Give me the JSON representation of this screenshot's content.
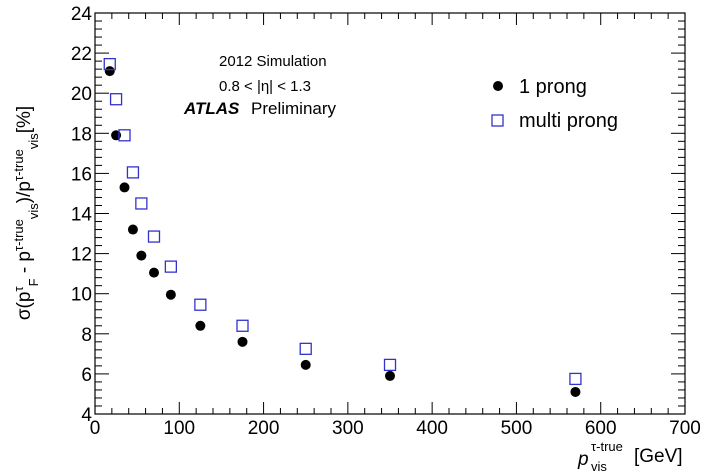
{
  "chart_data": {
    "type": "scatter",
    "xlim": [
      0,
      700
    ],
    "ylim": [
      4,
      24
    ],
    "x_ticks": [
      0,
      100,
      200,
      300,
      400,
      500,
      600,
      700
    ],
    "y_ticks": [
      4,
      6,
      8,
      10,
      12,
      14,
      16,
      18,
      20,
      22,
      24
    ],
    "xlabel": {
      "main": "p",
      "sup": "τ-true",
      "sub": "vis",
      "unit": "[GeV]"
    },
    "ylabel": "σ(p_F^τ - p_vis^τ-true)/p_vis^τ-true [%]",
    "annotations": {
      "simulation": "2012 Simulation",
      "eta_range": "0.8 < |η| < 1.3",
      "atlas": "ATLAS",
      "status": "Preliminary"
    },
    "legend_position": "top-right",
    "series": [
      {
        "name": "1 prong",
        "marker": "filled-circle",
        "color": "#000000",
        "points": [
          [
            17.5,
            21.1
          ],
          [
            25,
            17.9
          ],
          [
            35,
            15.3
          ],
          [
            45,
            13.2
          ],
          [
            55,
            11.9
          ],
          [
            70,
            11.05
          ],
          [
            90,
            9.95
          ],
          [
            125,
            8.4
          ],
          [
            175,
            7.6
          ],
          [
            250,
            6.45
          ],
          [
            350,
            5.9
          ],
          [
            570,
            5.1
          ]
        ]
      },
      {
        "name": "multi prong",
        "marker": "open-square",
        "color": "#3333cc",
        "points": [
          [
            17.5,
            21.45
          ],
          [
            25,
            19.7
          ],
          [
            35,
            17.9
          ],
          [
            45,
            16.05
          ],
          [
            55,
            14.5
          ],
          [
            70,
            12.85
          ],
          [
            90,
            11.35
          ],
          [
            125,
            9.45
          ],
          [
            175,
            8.4
          ],
          [
            250,
            7.25
          ],
          [
            350,
            6.45
          ],
          [
            570,
            5.75
          ]
        ]
      }
    ]
  }
}
